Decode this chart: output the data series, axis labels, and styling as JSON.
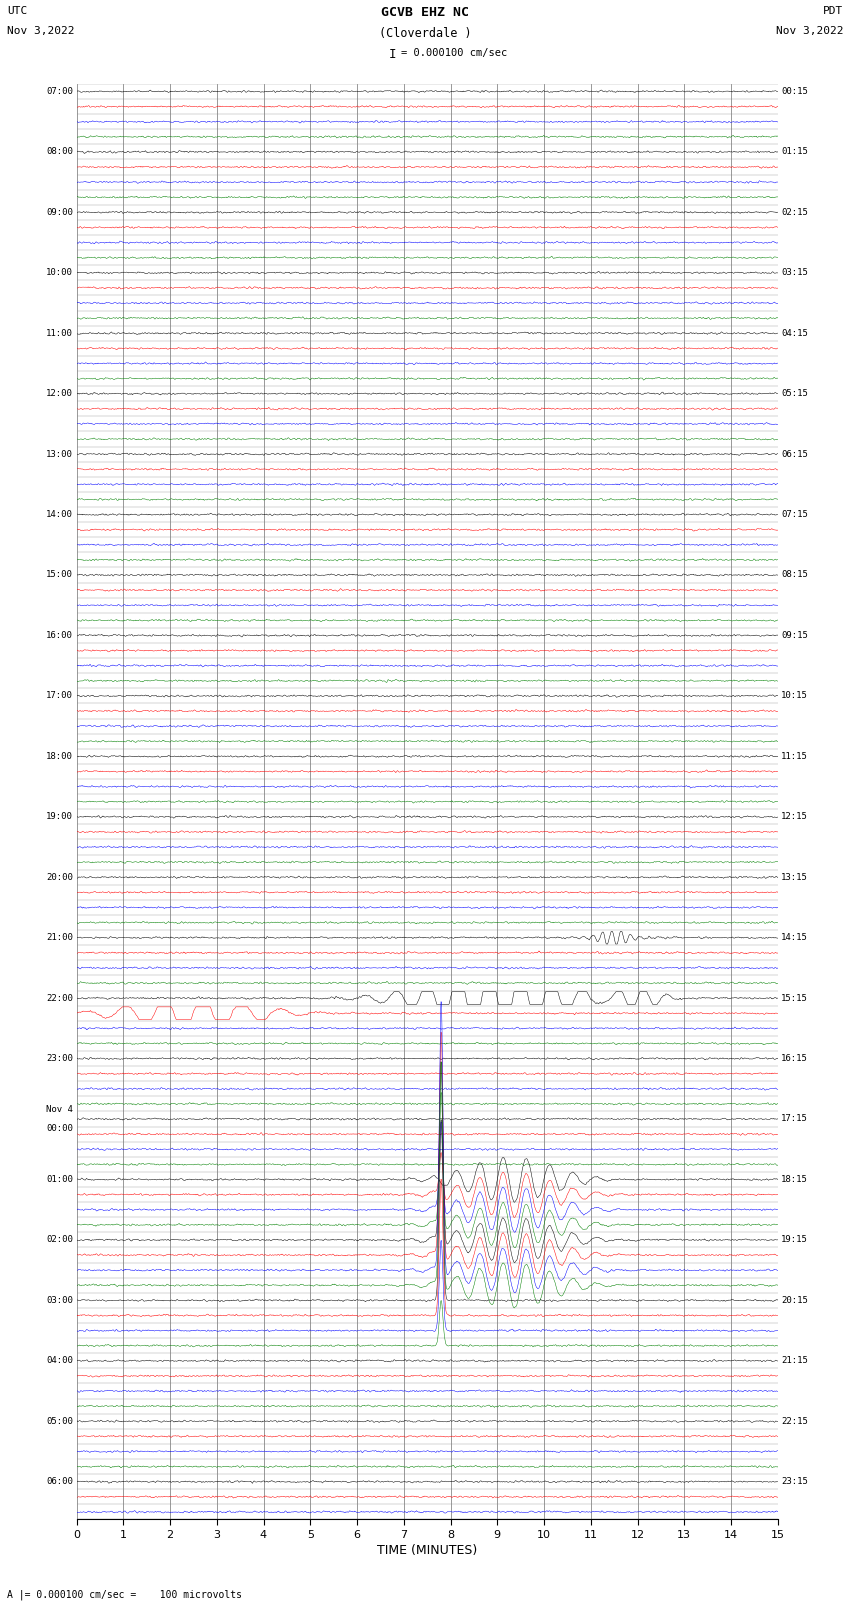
{
  "title_line1": "GCVB EHZ NC",
  "title_line2": "(Cloverdale )",
  "scale_text": "I = 0.000100 cm/sec",
  "left_header": "UTC",
  "left_date": "Nov 3,2022",
  "right_header": "PDT",
  "right_date": "Nov 3,2022",
  "bottom_label": "A |= 0.000100 cm/sec =    100 microvolts",
  "xlabel": "TIME (MINUTES)",
  "colors": [
    "black",
    "red",
    "blue",
    "green"
  ],
  "bg_color": "white",
  "grid_color": "#888888",
  "noise_amplitude": 0.06,
  "fig_width": 8.5,
  "fig_height": 16.13,
  "total_traces": 95,
  "left_time_labels": [
    "07:00",
    "",
    "",
    "",
    "08:00",
    "",
    "",
    "",
    "09:00",
    "",
    "",
    "",
    "10:00",
    "",
    "",
    "",
    "11:00",
    "",
    "",
    "",
    "12:00",
    "",
    "",
    "",
    "13:00",
    "",
    "",
    "",
    "14:00",
    "",
    "",
    "",
    "15:00",
    "",
    "",
    "",
    "16:00",
    "",
    "",
    "",
    "17:00",
    "",
    "",
    "",
    "18:00",
    "",
    "",
    "",
    "19:00",
    "",
    "",
    "",
    "20:00",
    "",
    "",
    "",
    "21:00",
    "",
    "",
    "",
    "22:00",
    "",
    "",
    "",
    "23:00",
    "",
    "",
    "",
    "Nov 4\n00:00",
    "",
    "",
    "",
    "01:00",
    "",
    "",
    "",
    "02:00",
    "",
    "",
    "",
    "03:00",
    "",
    "",
    "",
    "04:00",
    "",
    "",
    "",
    "05:00",
    "",
    "",
    "",
    "06:00",
    "",
    ""
  ],
  "right_time_labels": [
    "00:15",
    "",
    "",
    "",
    "01:15",
    "",
    "",
    "",
    "02:15",
    "",
    "",
    "",
    "03:15",
    "",
    "",
    "",
    "04:15",
    "",
    "",
    "",
    "05:15",
    "",
    "",
    "",
    "06:15",
    "",
    "",
    "",
    "07:15",
    "",
    "",
    "",
    "08:15",
    "",
    "",
    "",
    "09:15",
    "",
    "",
    "",
    "10:15",
    "",
    "",
    "",
    "11:15",
    "",
    "",
    "",
    "12:15",
    "",
    "",
    "",
    "13:15",
    "",
    "",
    "",
    "14:15",
    "",
    "",
    "",
    "15:15",
    "",
    "",
    "",
    "16:15",
    "",
    "",
    "",
    "17:15",
    "",
    "",
    "",
    "18:15",
    "",
    "",
    "",
    "19:15",
    "",
    "",
    "",
    "20:15",
    "",
    "",
    "",
    "21:15",
    "",
    "",
    "",
    "22:15",
    "",
    "",
    "",
    "23:15",
    "",
    ""
  ]
}
